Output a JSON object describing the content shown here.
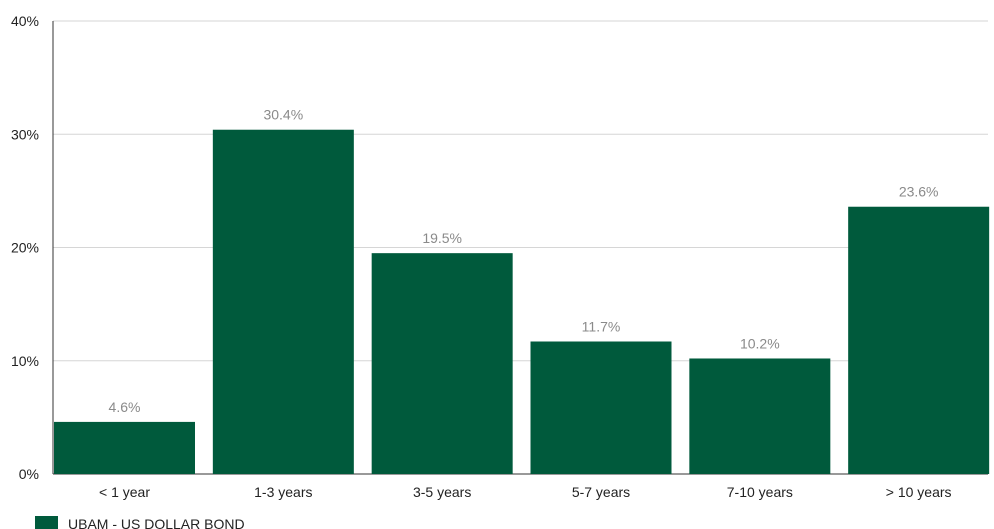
{
  "chart_data": {
    "type": "bar",
    "categories": [
      "< 1 year",
      "1-3 years",
      "3-5 years",
      "5-7 years",
      "7-10 years",
      "> 10 years"
    ],
    "series": [
      {
        "name": "UBAM - US DOLLAR BOND",
        "values": [
          4.6,
          30.4,
          19.5,
          11.7,
          10.2,
          23.6
        ],
        "labels": [
          "4.6%",
          "30.4%",
          "19.5%",
          "11.7%",
          "10.2%",
          "23.6%"
        ]
      }
    ],
    "ylim": [
      0,
      40
    ],
    "yticks": [
      0,
      10,
      20,
      30,
      40
    ],
    "ytick_labels": [
      "0%",
      "10%",
      "20%",
      "30%",
      "40%"
    ],
    "grid": true,
    "legend": "bottom-left",
    "colors": {
      "bar": "#005a3c",
      "grid": "#d6d6d6",
      "axis": "#333333",
      "data_label": "#8a8a8a"
    }
  }
}
